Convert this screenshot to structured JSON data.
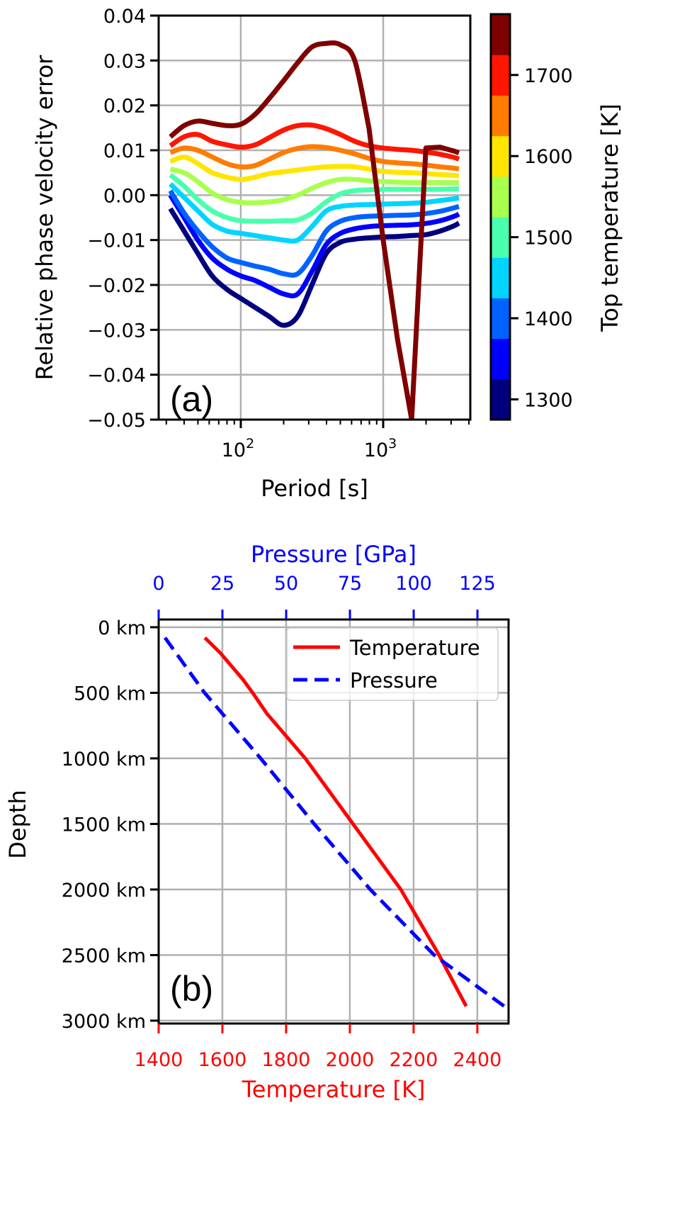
{
  "chart_data": [
    {
      "id": "a",
      "type": "line",
      "panel_label": "(a)",
      "xlabel": "Period [s]",
      "ylabel": "Relative phase velocity error",
      "xscale": "log",
      "xlim": [
        26.5,
        4090
      ],
      "ylim": [
        -0.05,
        0.04
      ],
      "x_ticks": [
        {
          "value": 100,
          "base": "10",
          "exp": "2"
        },
        {
          "value": 1000,
          "base": "10",
          "exp": "3"
        }
      ],
      "y_ticks": [
        0.04,
        0.03,
        0.02,
        0.01,
        0.0,
        -0.01,
        -0.02,
        -0.03,
        -0.04,
        -0.05
      ],
      "y_tick_labels": [
        "0.04",
        "0.03",
        "0.02",
        "0.01",
        "0.00",
        "−0.01",
        "−0.02",
        "−0.03",
        "−0.04",
        "−0.05"
      ],
      "grid": true,
      "colorbar": {
        "label": "Top temperature [K]",
        "range": [
          1275,
          1775
        ],
        "ticks": [
          1300,
          1400,
          1500,
          1600,
          1700
        ],
        "tick_labels": [
          "1300",
          "1400",
          "1500",
          "1600",
          "1700"
        ],
        "colors": [
          "#00007f",
          "#0000ff",
          "#0062ff",
          "#00d4ff",
          "#4affad",
          "#a9ff4d",
          "#ffe500",
          "#ff7c00",
          "#ff1600",
          "#7f0000"
        ]
      },
      "x": [
        32,
        40,
        50,
        63,
        80,
        100,
        126,
        158,
        200,
        251,
        316,
        398,
        501,
        631,
        794,
        1000,
        1259,
        1585,
        1995,
        2512,
        3162,
        3400
      ],
      "series": [
        {
          "name": "1300 K",
          "color": "#00007f",
          "values": [
            -0.003,
            -0.008,
            -0.013,
            -0.018,
            -0.021,
            -0.023,
            -0.025,
            -0.027,
            -0.029,
            -0.027,
            -0.02,
            -0.013,
            -0.0105,
            -0.0098,
            -0.0095,
            -0.0093,
            -0.0092,
            -0.009,
            -0.0088,
            -0.008,
            -0.0068,
            -0.0062
          ]
        },
        {
          "name": "1350 K",
          "color": "#0000ff",
          "values": [
            0.0,
            -0.005,
            -0.01,
            -0.014,
            -0.0165,
            -0.018,
            -0.019,
            -0.0205,
            -0.022,
            -0.022,
            -0.017,
            -0.011,
            -0.0085,
            -0.0075,
            -0.007,
            -0.0068,
            -0.0067,
            -0.0066,
            -0.0063,
            -0.0057,
            -0.0047,
            -0.0042
          ]
        },
        {
          "name": "1400 K",
          "color": "#0062ff",
          "values": [
            0.001,
            -0.004,
            -0.008,
            -0.0115,
            -0.014,
            -0.015,
            -0.0158,
            -0.0165,
            -0.0175,
            -0.0175,
            -0.0135,
            -0.008,
            -0.0058,
            -0.005,
            -0.0047,
            -0.0046,
            -0.0045,
            -0.0044,
            -0.0041,
            -0.0036,
            -0.0028,
            -0.0025
          ]
        },
        {
          "name": "1450 K",
          "color": "#00d4ff",
          "values": [
            0.0025,
            -0.0005,
            -0.0035,
            -0.0065,
            -0.008,
            -0.0085,
            -0.009,
            -0.0095,
            -0.01,
            -0.01,
            -0.007,
            -0.0035,
            -0.0025,
            -0.0022,
            -0.0021,
            -0.002,
            -0.0019,
            -0.0018,
            -0.0016,
            -0.0012,
            -0.0008,
            -0.0006
          ]
        },
        {
          "name": "1500 K",
          "color": "#4affad",
          "values": [
            0.0045,
            0.002,
            -0.001,
            -0.0035,
            -0.005,
            -0.0057,
            -0.0058,
            -0.0058,
            -0.0057,
            -0.0055,
            -0.004,
            -0.0015,
            0.0003,
            0.001,
            0.0012,
            0.0013,
            0.0013,
            0.0013,
            0.0013,
            0.0013,
            0.0014,
            0.0014
          ]
        },
        {
          "name": "1550 K",
          "color": "#a9ff4d",
          "values": [
            0.0058,
            0.005,
            0.003,
            0.0005,
            -0.001,
            -0.0016,
            -0.0017,
            -0.0015,
            -0.001,
            0.0,
            0.0015,
            0.0028,
            0.0035,
            0.0035,
            0.0032,
            0.003,
            0.0029,
            0.0028,
            0.0028,
            0.0028,
            0.0028,
            0.0028
          ]
        },
        {
          "name": "1600 K",
          "color": "#ffe500",
          "values": [
            0.0075,
            0.0085,
            0.007,
            0.005,
            0.004,
            0.0035,
            0.004,
            0.0048,
            0.0052,
            0.0056,
            0.006,
            0.0063,
            0.0064,
            0.0063,
            0.0058,
            0.0053,
            0.0051,
            0.005,
            0.0048,
            0.0046,
            0.0044,
            0.0043
          ]
        },
        {
          "name": "1650 K",
          "color": "#ff7c00",
          "values": [
            0.0095,
            0.0105,
            0.01,
            0.0085,
            0.007,
            0.0063,
            0.0066,
            0.008,
            0.0095,
            0.0104,
            0.0108,
            0.0106,
            0.01,
            0.0092,
            0.0082,
            0.0075,
            0.0072,
            0.007,
            0.0067,
            0.0063,
            0.006,
            0.0058
          ]
        },
        {
          "name": "1700 K",
          "color": "#ff1600",
          "values": [
            0.011,
            0.013,
            0.0135,
            0.012,
            0.0112,
            0.0107,
            0.0112,
            0.0128,
            0.0145,
            0.0155,
            0.0156,
            0.0148,
            0.0135,
            0.012,
            0.011,
            0.0105,
            0.0102,
            0.01,
            0.0096,
            0.0091,
            0.0084,
            0.008
          ]
        },
        {
          "name": "1750 K",
          "color": "#7f0000",
          "values": [
            0.013,
            0.0155,
            0.0165,
            0.016,
            0.0155,
            0.0158,
            0.018,
            0.0215,
            0.0255,
            0.0295,
            0.033,
            0.0338,
            0.0335,
            0.03,
            0.015,
            -0.01,
            -0.032,
            -0.05,
            0.0105,
            0.0107,
            0.0098,
            0.0094
          ]
        }
      ]
    },
    {
      "id": "b",
      "type": "line",
      "panel_label": "(b)",
      "ylabel": "Depth",
      "xlabel_bottom": "Temperature [K]",
      "xlabel_top": "Pressure [GPa]",
      "xlim_temperature": [
        1400,
        2498
      ],
      "xlim_pressure": [
        0,
        137.2
      ],
      "ylim_depth_km": [
        3022,
        -59
      ],
      "y_ticks": [
        0,
        500,
        1000,
        1500,
        2000,
        2500,
        3000
      ],
      "y_tick_labels": [
        "0 km",
        "500 km",
        "1000 km",
        "1500 km",
        "2000 km",
        "2500 km",
        "3000 km"
      ],
      "x_ticks_temperature": [
        1400,
        1600,
        1800,
        2000,
        2200,
        2400
      ],
      "x_tick_labels_temperature": [
        "1400",
        "1600",
        "1800",
        "2000",
        "2200",
        "2400"
      ],
      "x_ticks_pressure": [
        0,
        25,
        50,
        75,
        100,
        125
      ],
      "x_tick_labels_pressure": [
        "0",
        "25",
        "50",
        "75",
        "100",
        "125"
      ],
      "temperature_color": "#ff0000",
      "pressure_color": "#0000ff",
      "grid": true,
      "legend": {
        "position": "top-right",
        "entries": [
          {
            "label": "Temperature",
            "style": "solid",
            "color": "#ff0000"
          },
          {
            "label": "Pressure",
            "style": "dashed",
            "color": "#0000ff"
          }
        ]
      },
      "series": [
        {
          "name": "Temperature",
          "axis": "temperature",
          "depth_km": [
            80,
            200,
            400,
            500,
            660,
            1000,
            1500,
            2000,
            2500,
            2890
          ],
          "values": [
            1545,
            1595,
            1665,
            1695,
            1740,
            1860,
            2010,
            2160,
            2280,
            2365
          ]
        },
        {
          "name": "Pressure",
          "axis": "pressure",
          "depth_km": [
            80,
            500,
            1000,
            1500,
            2000,
            2500,
            2890
          ],
          "values": [
            2.5,
            18,
            40,
            61,
            83,
            108,
            135.5
          ]
        }
      ]
    }
  ]
}
